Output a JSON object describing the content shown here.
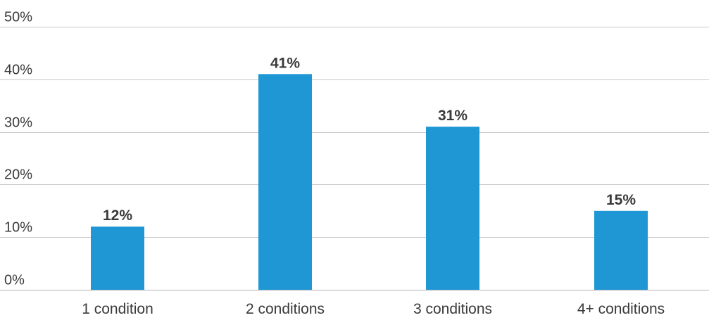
{
  "chart_data": {
    "type": "bar",
    "categories": [
      "1 condition",
      "2 conditions",
      "3 conditions",
      "4+ conditions"
    ],
    "values": [
      12,
      41,
      31,
      15
    ],
    "data_labels": [
      "12%",
      "41%",
      "31%",
      "15%"
    ],
    "y_ticks": [
      0,
      10,
      20,
      30,
      40,
      50
    ],
    "y_tick_labels": [
      "0%",
      "10%",
      "20%",
      "30%",
      "40%",
      "50%"
    ],
    "ylim": [
      0,
      50
    ],
    "grid": true,
    "legend": "none",
    "title": "",
    "xlabel": "",
    "ylabel": "",
    "bar_color": "#1f97d4"
  }
}
